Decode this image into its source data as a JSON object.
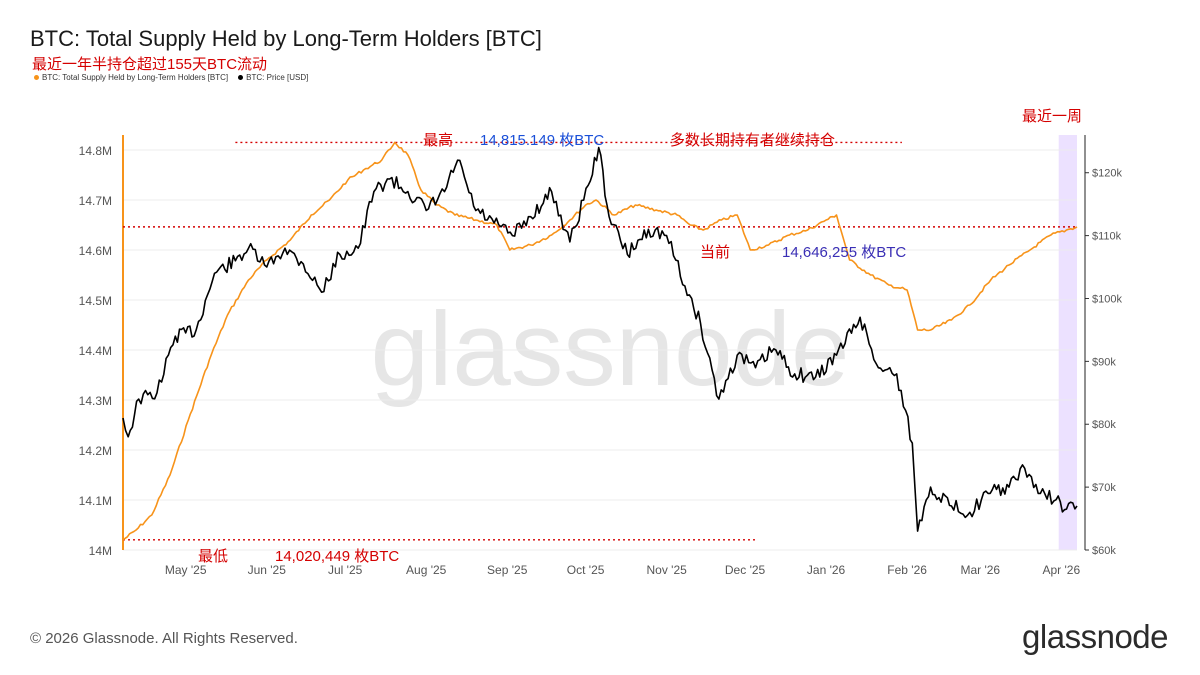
{
  "title": "BTC: Total Supply Held by Long-Term Holders [BTC]",
  "subtitle": "最近一年半持仓超过155天BTC流动",
  "legend": [
    {
      "label": "BTC: Total Supply Held by Long-Term Holders [BTC]",
      "color": "#f7931a"
    },
    {
      "label": "BTC: Price [USD]",
      "color": "#000000"
    }
  ],
  "annotations": {
    "high_label": "最高",
    "high_value": "14,815.149 枚BTC",
    "hold_note": "多数长期持有者继续持仓",
    "current_label": "当前",
    "current_value": "14,646,255 枚BTC",
    "low_label": "最低",
    "low_value": "14,020,449 枚BTC",
    "recent_week": "最近一周"
  },
  "footer": {
    "copyright": "© 2026 Glassnode. All Rights Reserved.",
    "logo": "glassnode"
  },
  "watermark": "glassnode",
  "colors": {
    "supply": "#f7931a",
    "price": "#000000",
    "annotation_red": "#d40000",
    "highlight": "#e9dcff"
  },
  "chart_data": {
    "type": "line",
    "x_ticks": [
      "May '25",
      "Jun '25",
      "Jul '25",
      "Aug '25",
      "Sep '25",
      "Oct '25",
      "Nov '25",
      "Dec '25",
      "Jan '26",
      "Feb '26",
      "Mar '26",
      "Apr '26"
    ],
    "x_range": [
      "2025-04-07",
      "2026-04-07"
    ],
    "y_left": {
      "ticks": [
        "14M",
        "14.1M",
        "14.2M",
        "14.3M",
        "14.4M",
        "14.5M",
        "14.6M",
        "14.7M",
        "14.8M"
      ],
      "range": [
        14000000,
        14830000
      ]
    },
    "y_right": {
      "ticks": [
        "$60k",
        "$70k",
        "$80k",
        "$90k",
        "$100k",
        "$110k",
        "$120k"
      ],
      "range": [
        60000,
        126000
      ]
    },
    "grid": true,
    "log_scale": false,
    "series": [
      {
        "name": "BTC: Total Supply Held by Long-Term Holders [BTC]",
        "axis": "left",
        "color": "#f7931a",
        "points": [
          [
            "2025-04-07",
            14020000
          ],
          [
            "2025-04-12",
            14040000
          ],
          [
            "2025-04-18",
            14070000
          ],
          [
            "2025-04-25",
            14150000
          ],
          [
            "2025-05-02",
            14260000
          ],
          [
            "2025-05-10",
            14380000
          ],
          [
            "2025-05-17",
            14470000
          ],
          [
            "2025-05-25",
            14540000
          ],
          [
            "2025-06-01",
            14580000
          ],
          [
            "2025-06-10",
            14620000
          ],
          [
            "2025-06-18",
            14670000
          ],
          [
            "2025-06-25",
            14700000
          ],
          [
            "2025-07-02",
            14740000
          ],
          [
            "2025-07-08",
            14760000
          ],
          [
            "2025-07-15",
            14780000
          ],
          [
            "2025-07-20",
            14815149
          ],
          [
            "2025-07-25",
            14790000
          ],
          [
            "2025-07-30",
            14720000
          ],
          [
            "2025-08-05",
            14690000
          ],
          [
            "2025-08-12",
            14670000
          ],
          [
            "2025-08-20",
            14660000
          ],
          [
            "2025-08-28",
            14650000
          ],
          [
            "2025-09-02",
            14600000
          ],
          [
            "2025-09-10",
            14610000
          ],
          [
            "2025-09-18",
            14630000
          ],
          [
            "2025-09-25",
            14660000
          ],
          [
            "2025-10-01",
            14690000
          ],
          [
            "2025-10-05",
            14700000
          ],
          [
            "2025-10-12",
            14670000
          ],
          [
            "2025-10-20",
            14690000
          ],
          [
            "2025-10-28",
            14680000
          ],
          [
            "2025-11-05",
            14670000
          ],
          [
            "2025-11-10",
            14650000
          ],
          [
            "2025-11-15",
            14640000
          ],
          [
            "2025-11-22",
            14660000
          ],
          [
            "2025-11-28",
            14670000
          ],
          [
            "2025-12-03",
            14600000
          ],
          [
            "2025-12-10",
            14610000
          ],
          [
            "2025-12-18",
            14630000
          ],
          [
            "2025-12-25",
            14640000
          ],
          [
            "2026-01-01",
            14660000
          ],
          [
            "2026-01-05",
            14670000
          ],
          [
            "2026-01-10",
            14580000
          ],
          [
            "2026-01-18",
            14550000
          ],
          [
            "2026-01-25",
            14530000
          ],
          [
            "2026-02-01",
            14520000
          ],
          [
            "2026-02-05",
            14440000
          ],
          [
            "2026-02-10",
            14440000
          ],
          [
            "2026-02-18",
            14460000
          ],
          [
            "2026-02-25",
            14490000
          ],
          [
            "2026-03-05",
            14540000
          ],
          [
            "2026-03-12",
            14570000
          ],
          [
            "2026-03-20",
            14600000
          ],
          [
            "2026-03-28",
            14630000
          ],
          [
            "2026-04-03",
            14640000
          ],
          [
            "2026-04-07",
            14646255
          ]
        ]
      },
      {
        "name": "BTC: Price [USD]",
        "axis": "right",
        "color": "#000000",
        "points": [
          [
            "2025-04-07",
            81000
          ],
          [
            "2025-04-09",
            78000
          ],
          [
            "2025-04-13",
            84000
          ],
          [
            "2025-04-20",
            85000
          ],
          [
            "2025-04-27",
            94000
          ],
          [
            "2025-05-05",
            95000
          ],
          [
            "2025-05-12",
            104000
          ],
          [
            "2025-05-20",
            106000
          ],
          [
            "2025-05-25",
            108000
          ],
          [
            "2025-06-01",
            105000
          ],
          [
            "2025-06-08",
            108000
          ],
          [
            "2025-06-15",
            105500
          ],
          [
            "2025-06-22",
            101000
          ],
          [
            "2025-06-29",
            107000
          ],
          [
            "2025-07-06",
            108000
          ],
          [
            "2025-07-12",
            117000
          ],
          [
            "2025-07-18",
            119000
          ],
          [
            "2025-07-25",
            117000
          ],
          [
            "2025-08-01",
            114000
          ],
          [
            "2025-08-08",
            117000
          ],
          [
            "2025-08-13",
            122000
          ],
          [
            "2025-08-20",
            114000
          ],
          [
            "2025-08-27",
            112000
          ],
          [
            "2025-09-03",
            110000
          ],
          [
            "2025-09-10",
            113000
          ],
          [
            "2025-09-18",
            117000
          ],
          [
            "2025-09-25",
            109000
          ],
          [
            "2025-10-02",
            118000
          ],
          [
            "2025-10-06",
            124000
          ],
          [
            "2025-10-10",
            113000
          ],
          [
            "2025-10-17",
            107000
          ],
          [
            "2025-10-25",
            111000
          ],
          [
            "2025-11-01",
            110000
          ],
          [
            "2025-11-08",
            102000
          ],
          [
            "2025-11-14",
            96000
          ],
          [
            "2025-11-21",
            84000
          ],
          [
            "2025-11-28",
            91000
          ],
          [
            "2025-12-05",
            89000
          ],
          [
            "2025-12-12",
            92000
          ],
          [
            "2025-12-20",
            88000
          ],
          [
            "2025-12-28",
            87500
          ],
          [
            "2026-01-05",
            91000
          ],
          [
            "2026-01-14",
            97000
          ],
          [
            "2026-01-21",
            89000
          ],
          [
            "2026-01-28",
            88000
          ],
          [
            "2026-02-03",
            77000
          ],
          [
            "2026-02-05",
            63000
          ],
          [
            "2026-02-10",
            70000
          ],
          [
            "2026-02-18",
            67000
          ],
          [
            "2026-02-25",
            66000
          ],
          [
            "2026-03-04",
            69000
          ],
          [
            "2026-03-12",
            70000
          ],
          [
            "2026-03-18",
            73000
          ],
          [
            "2026-03-24",
            69000
          ],
          [
            "2026-03-30",
            68000
          ],
          [
            "2026-04-03",
            66500
          ],
          [
            "2026-04-07",
            67000
          ]
        ]
      }
    ],
    "reference_lines": [
      {
        "axis": "left",
        "value": 14815149,
        "from": "2025-05-20",
        "to": "2026-01-30",
        "style": "dotted",
        "color": "#d40000"
      },
      {
        "axis": "left",
        "value": 14646255,
        "from": "2025-04-07",
        "to": "2026-04-07",
        "style": "dotted",
        "color": "#d40000"
      },
      {
        "axis": "left",
        "value": 14020449,
        "from": "2025-04-07",
        "to": "2025-12-05",
        "style": "dotted",
        "color": "#d40000"
      }
    ],
    "highlight_range": {
      "from": "2026-03-31",
      "to": "2026-04-07"
    }
  }
}
